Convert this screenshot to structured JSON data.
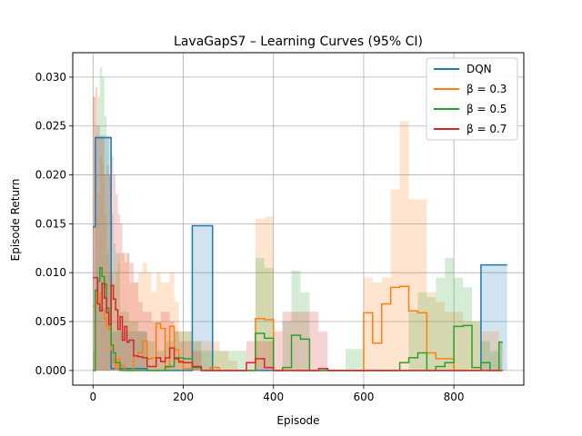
{
  "chart_data": {
    "type": "line",
    "title": "LavaGapS7 – Learning Curves (95% CI)",
    "xlabel": "Episode",
    "ylabel": "Episode Return",
    "xlim": [
      -45,
      955
    ],
    "ylim": [
      -0.0015,
      0.0325
    ],
    "xticks": [
      0,
      200,
      400,
      600,
      800
    ],
    "yticks": [
      0.0,
      0.005,
      0.01,
      0.015,
      0.02,
      0.025,
      0.03
    ],
    "ytick_labels": [
      "0.000",
      "0.005",
      "0.010",
      "0.015",
      "0.020",
      "0.025",
      "0.030"
    ],
    "grid": true,
    "legend_position": "top-right",
    "series": [
      {
        "name": "DQN",
        "color": "#1f77b4",
        "x": [
          0,
          5,
          30,
          40,
          120,
          140,
          220,
          265,
          275,
          320,
          680,
          690,
          700,
          860,
          910
        ],
        "y": [
          0.0147,
          0.0238,
          0.0238,
          0.0002,
          0.0,
          0.0,
          0.0148,
          0.0,
          0.0,
          0.0,
          0.0,
          0.0,
          0.0,
          0.0108,
          0.0108
        ],
        "ci_upper": [
          0.0147,
          0.024,
          0.024,
          0.004,
          0.0,
          0.0,
          0.0148,
          0.0,
          0.0,
          0.0,
          0.0,
          0.0,
          0.0,
          0.0108,
          0.0108
        ]
      },
      {
        "name": "β = 0.3",
        "color": "#ff7f0e",
        "x": [
          0,
          5,
          10,
          15,
          20,
          25,
          30,
          35,
          40,
          45,
          50,
          55,
          60,
          70,
          80,
          90,
          100,
          110,
          120,
          130,
          140,
          150,
          160,
          170,
          180,
          190,
          200,
          220,
          240,
          260,
          280,
          300,
          320,
          340,
          360,
          380,
          400,
          420,
          440,
          460,
          480,
          500,
          520,
          540,
          560,
          580,
          600,
          620,
          640,
          660,
          680,
          700,
          720,
          740,
          760,
          780,
          800,
          820,
          840,
          860,
          880,
          900
        ],
        "y": [
          0.0066,
          0.0069,
          0.0068,
          0.0079,
          0.0063,
          0.0053,
          0.0045,
          0.0042,
          0.0021,
          0.0008,
          0.0002,
          0.0012,
          0.0005,
          0.0,
          0.0,
          0.0015,
          0.0018,
          0.003,
          0.0012,
          0.0013,
          0.0048,
          0.0043,
          0.0003,
          0.0045,
          0.0021,
          0.0008,
          0.0002,
          0.0003,
          0.0,
          0.0003,
          0.0,
          0.0,
          0.0,
          0.0,
          0.0053,
          0.0052,
          0.0,
          0.0,
          0.0,
          0.0,
          0.0,
          0.0,
          0.0,
          0.0,
          0.0,
          0.0,
          0.0059,
          0.0028,
          0.0068,
          0.0085,
          0.0086,
          0.0061,
          0.0059,
          0.0018,
          0.0012,
          0.0012,
          0.0,
          0.0,
          0.0,
          0.0,
          0.0,
          0.0
        ],
        "ci_upper": [
          0.028,
          0.02,
          0.018,
          0.022,
          0.021,
          0.016,
          0.012,
          0.01,
          0.01,
          0.009,
          0.01,
          0.011,
          0.012,
          0.012,
          0.009,
          0.009,
          0.01,
          0.011,
          0.01,
          0.008,
          0.01,
          0.009,
          0.009,
          0.01,
          0.007,
          0.004,
          0.004,
          0.003,
          0.003,
          0.003,
          0.002,
          0.001,
          0.0,
          0.0,
          0.0155,
          0.0157,
          0.0,
          0.0,
          0.0,
          0.0,
          0.0,
          0.0,
          0.0,
          0.0,
          0.0,
          0.0,
          0.0095,
          0.009,
          0.0095,
          0.0185,
          0.0255,
          0.0175,
          0.0175,
          0.008,
          0.007,
          0.006,
          0.006,
          0.005,
          0.005,
          0.004,
          0.004,
          0.003
        ]
      },
      {
        "name": "β = 0.5",
        "color": "#2ca02c",
        "x": [
          0,
          5,
          10,
          15,
          20,
          25,
          30,
          35,
          40,
          45,
          50,
          60,
          80,
          100,
          120,
          140,
          160,
          180,
          200,
          220,
          240,
          260,
          280,
          300,
          320,
          340,
          360,
          380,
          400,
          420,
          440,
          460,
          480,
          500,
          520,
          540,
          560,
          580,
          600,
          620,
          640,
          660,
          680,
          700,
          720,
          740,
          760,
          780,
          800,
          820,
          840,
          860,
          880,
          900
        ],
        "y": [
          0.0,
          0.0082,
          0.0091,
          0.0105,
          0.0096,
          0.0088,
          0.0064,
          0.0047,
          0.0026,
          0.0018,
          0.0008,
          0.0,
          0.0,
          0.0,
          0.0,
          0.0,
          0.0004,
          0.0013,
          0.0012,
          0.0003,
          0.0,
          0.0,
          0.0,
          0.0,
          0.0,
          0.0,
          0.0038,
          0.0033,
          0.0,
          0.0003,
          0.0036,
          0.0032,
          0.0,
          0.0,
          0.0,
          0.0,
          0.0,
          0.0,
          0.0,
          0.0,
          0.0,
          0.0,
          0.0008,
          0.0013,
          0.0018,
          0.0,
          0.0004,
          0.0008,
          0.0045,
          0.0046,
          0.0003,
          0.0008,
          0.0,
          0.0029
        ],
        "ci_upper": [
          0.002,
          0.025,
          0.028,
          0.031,
          0.03,
          0.026,
          0.024,
          0.02,
          0.016,
          0.013,
          0.012,
          0.006,
          0.005,
          0.004,
          0.003,
          0.002,
          0.003,
          0.004,
          0.004,
          0.003,
          0.002,
          0.002,
          0.002,
          0.002,
          0.002,
          0.0,
          0.0115,
          0.0105,
          0.0,
          0.005,
          0.0102,
          0.008,
          0.0,
          0.0,
          0.0,
          0.0,
          0.0022,
          0.0022,
          0.0,
          0.0,
          0.0,
          0.0,
          0.0,
          0.006,
          0.008,
          0.0075,
          0.0095,
          0.0115,
          0.0095,
          0.0085,
          0.005,
          0.003,
          0.002,
          0.003
        ]
      },
      {
        "name": "β = 0.7",
        "color": "#d62728",
        "x": [
          0,
          5,
          10,
          15,
          20,
          25,
          30,
          35,
          40,
          45,
          50,
          55,
          60,
          65,
          70,
          75,
          80,
          90,
          100,
          110,
          120,
          130,
          140,
          150,
          160,
          170,
          180,
          190,
          200,
          220,
          240,
          260,
          280,
          300,
          320,
          340,
          360,
          380,
          400,
          420,
          440,
          460,
          480,
          500,
          520,
          540,
          560,
          580,
          600,
          620,
          640,
          660,
          680,
          700,
          720,
          740,
          760,
          780,
          800,
          820,
          840,
          860,
          870,
          880,
          890,
          900
        ],
        "y": [
          0.0095,
          0.0095,
          0.0068,
          0.0061,
          0.0089,
          0.0074,
          0.0059,
          0.0047,
          0.0087,
          0.0073,
          0.0062,
          0.0042,
          0.0055,
          0.0031,
          0.0045,
          0.0029,
          0.0031,
          0.0015,
          0.0014,
          0.0013,
          0.0004,
          0.0004,
          0.0013,
          0.0009,
          0.0013,
          0.0023,
          0.0012,
          0.0009,
          0.0008,
          0.0004,
          0.0,
          0.0,
          0.0,
          0.0,
          0.0,
          0.0008,
          0.0012,
          0.0003,
          0.0,
          0.0,
          0.0,
          0.0,
          0.0,
          0.0002,
          0.0,
          0.0,
          0.0,
          0.0,
          0.0,
          0.0,
          0.0,
          0.0,
          0.0,
          0.0,
          0.0,
          0.0,
          0.0,
          0.0,
          0.0,
          0.0,
          0.0,
          0.0,
          0.0,
          0.0,
          0.0,
          0.0
        ],
        "ci_upper": [
          0.028,
          0.029,
          0.025,
          0.024,
          0.024,
          0.02,
          0.021,
          0.02,
          0.022,
          0.02,
          0.018,
          0.016,
          0.015,
          0.012,
          0.011,
          0.012,
          0.011,
          0.009,
          0.007,
          0.006,
          0.006,
          0.005,
          0.005,
          0.006,
          0.006,
          0.005,
          0.004,
          0.003,
          0.003,
          0.002,
          0.0,
          0.0,
          0.0,
          0.0,
          0.0,
          0.003,
          0.003,
          0.003,
          0.004,
          0.006,
          0.006,
          0.006,
          0.006,
          0.004,
          0.0,
          0.0,
          0.0,
          0.0,
          0.0,
          0.0,
          0.0,
          0.0,
          0.0,
          0.0,
          0.0,
          0.0,
          0.0,
          0.0,
          0.0,
          0.0,
          0.0,
          0.0,
          0.0,
          0.0,
          0.0,
          0.0
        ]
      }
    ]
  }
}
